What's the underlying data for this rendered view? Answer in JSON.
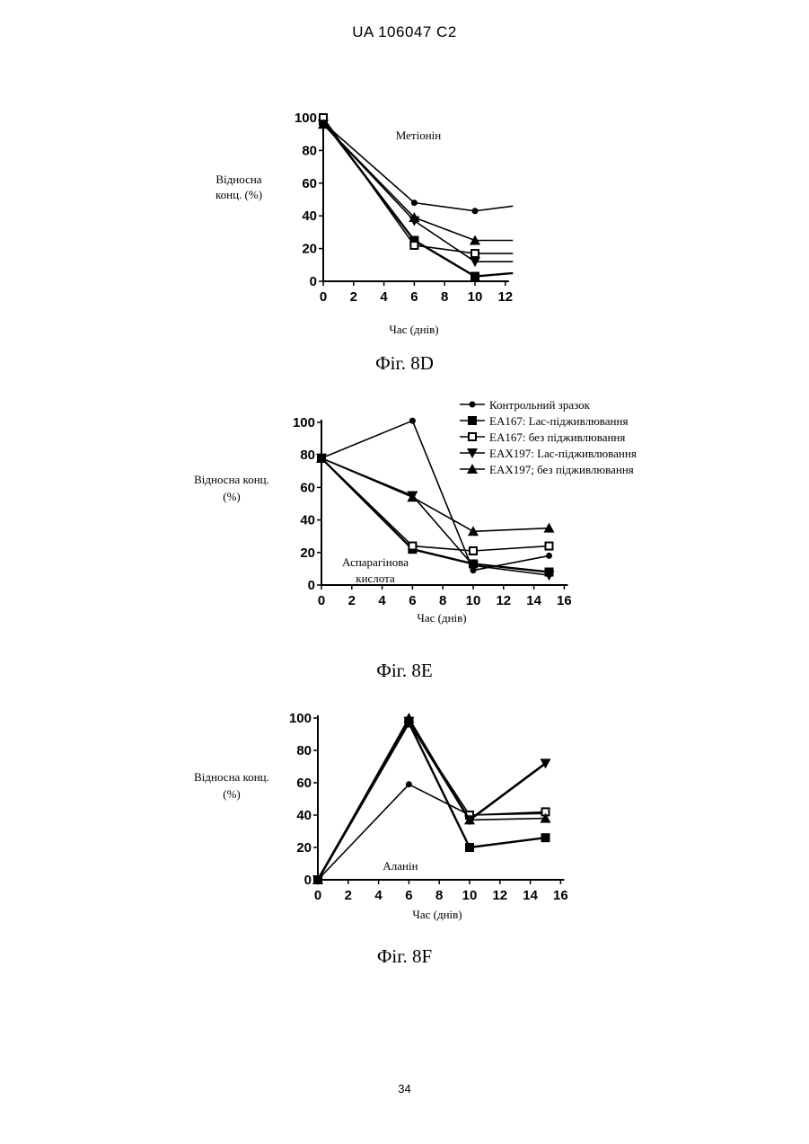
{
  "header": "UA   106047   C2",
  "page_number": "34",
  "chart_data": [
    {
      "type": "line",
      "caption": "Фіг. 8D",
      "annotation": "Метіонін",
      "ylabel_lines": [
        "Відносна",
        "конц. (%)"
      ],
      "xlabel": "Час (днів)",
      "xlim": [
        0,
        12
      ],
      "ylim": [
        0,
        100
      ],
      "xticks": [
        0,
        2,
        4,
        6,
        8,
        10,
        12
      ],
      "yticks": [
        0,
        20,
        40,
        60,
        80,
        100
      ],
      "series": [
        {
          "marker": "circle",
          "x": [
            0,
            6,
            10,
            12.5
          ],
          "y": [
            97,
            48,
            43,
            46
          ]
        },
        {
          "marker": "square-filled",
          "x": [
            0,
            6,
            10,
            12.5
          ],
          "y": [
            98,
            25,
            3,
            5
          ]
        },
        {
          "marker": "square-open",
          "x": [
            0,
            6,
            10,
            12.5
          ],
          "y": [
            100,
            22,
            17,
            17
          ]
        },
        {
          "marker": "triangle-down",
          "x": [
            0,
            6,
            10,
            12.5
          ],
          "y": [
            96,
            37,
            12,
            12
          ]
        },
        {
          "marker": "triangle-up",
          "x": [
            0,
            6,
            10,
            12.5
          ],
          "y": [
            96,
            39,
            25,
            25
          ]
        }
      ]
    },
    {
      "type": "line",
      "caption": "Фіг. 8E",
      "annotation_lines": [
        "Аспарагінова",
        "кислота"
      ],
      "ylabel_lines": [
        "Відносна конц.",
        "(%)"
      ],
      "xlabel": "Час (днів)",
      "xlim": [
        0,
        16
      ],
      "ylim": [
        0,
        100
      ],
      "xticks": [
        0,
        2,
        4,
        6,
        8,
        10,
        12,
        14,
        16
      ],
      "yticks": [
        0,
        20,
        40,
        60,
        80,
        100
      ],
      "legend_position": "top-right",
      "series": [
        {
          "name": "Контрольний зразок",
          "marker": "circle",
          "x": [
            0,
            6,
            10,
            15
          ],
          "y": [
            78,
            101,
            9,
            18
          ]
        },
        {
          "name": "EA167: Lac-підживлювання",
          "marker": "square-filled",
          "x": [
            0,
            6,
            10,
            15
          ],
          "y": [
            78,
            22,
            13,
            8
          ]
        },
        {
          "name": "EA167: без підживлювання",
          "marker": "square-open",
          "x": [
            0,
            6,
            10,
            15
          ],
          "y": [
            78,
            24,
            21,
            24
          ]
        },
        {
          "name": "EAX197: Lac-підживлювання",
          "marker": "triangle-down",
          "x": [
            0,
            6,
            10,
            15
          ],
          "y": [
            78,
            55,
            12,
            6
          ]
        },
        {
          "name": "EAX197; без підживлювання",
          "marker": "triangle-up",
          "x": [
            0,
            6,
            10,
            15
          ],
          "y": [
            78,
            54,
            33,
            35
          ]
        }
      ]
    },
    {
      "type": "line",
      "caption": "Фіг. 8F",
      "annotation": "Аланін",
      "ylabel_lines": [
        "Відносна конц.",
        "(%)"
      ],
      "xlabel": "Час (днів)",
      "xlim": [
        0,
        16
      ],
      "ylim": [
        0,
        100
      ],
      "xticks": [
        0,
        2,
        4,
        6,
        8,
        10,
        12,
        14,
        16
      ],
      "yticks": [
        0,
        20,
        40,
        60,
        80,
        100
      ],
      "series": [
        {
          "marker": "circle",
          "x": [
            0,
            6,
            10,
            15
          ],
          "y": [
            0,
            59,
            40,
            41
          ]
        },
        {
          "marker": "square-filled",
          "x": [
            0,
            6,
            10,
            15
          ],
          "y": [
            0,
            97,
            20,
            26
          ]
        },
        {
          "marker": "square-open",
          "x": [
            0,
            6,
            10,
            15
          ],
          "y": [
            0,
            97,
            40,
            42
          ]
        },
        {
          "marker": "triangle-down",
          "x": [
            0,
            6,
            10,
            15
          ],
          "y": [
            0,
            98,
            37,
            72
          ]
        },
        {
          "marker": "triangle-up",
          "x": [
            0,
            6,
            10,
            15
          ],
          "y": [
            0,
            100,
            37,
            38
          ]
        }
      ]
    }
  ]
}
